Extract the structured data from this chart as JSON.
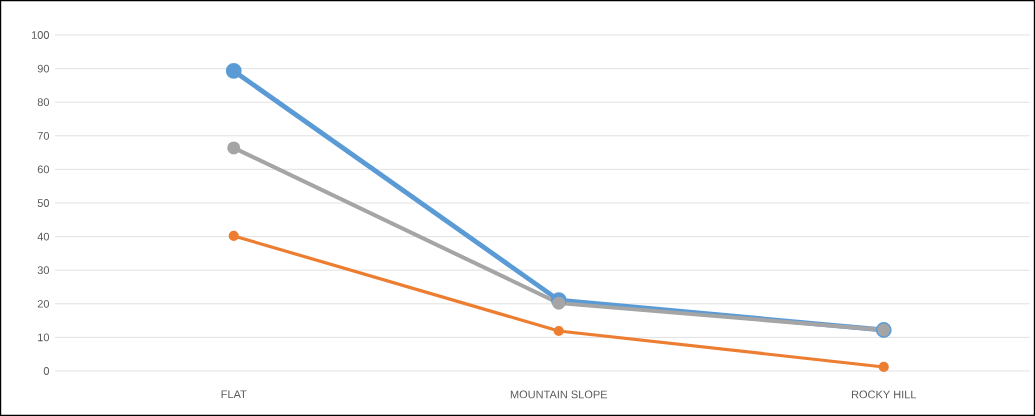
{
  "chart_data": {
    "type": "line",
    "categories": [
      "FLAT",
      "MOUNTAIN SLOPE",
      "ROCKY  HILL"
    ],
    "series": [
      {
        "color": "#5b9bd5",
        "values": [
          89.3,
          21.1,
          12.2
        ]
      },
      {
        "color": "#a5a5a5",
        "values": [
          66.4,
          20.2,
          12.2
        ]
      },
      {
        "color": "#ed7d31",
        "values": [
          40.2,
          11.9,
          1.2
        ]
      }
    ],
    "ylim": [
      0,
      100
    ],
    "yticks": [
      0,
      10,
      20,
      30,
      40,
      50,
      60,
      70,
      80,
      90,
      100
    ],
    "grid": "y",
    "marker": "circle",
    "line_style": "solid"
  }
}
